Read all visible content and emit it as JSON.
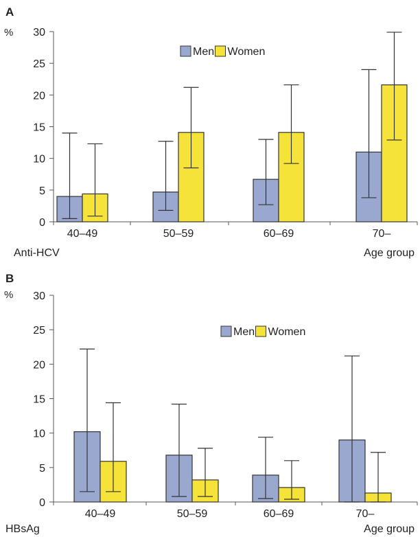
{
  "chart_data": [
    {
      "type": "bar",
      "panel": "A",
      "unit": "%",
      "ylabel": "%",
      "xlabel": "Age group",
      "marker_label": "Anti-HCV",
      "categories": [
        "40–49",
        "50–59",
        "60–69",
        "70–"
      ],
      "ylim": [
        0,
        30
      ],
      "yticks": [
        "0",
        "5",
        "10",
        "15",
        "20",
        "25",
        "30"
      ],
      "legend_position": "top-center",
      "series": [
        {
          "name": "Men",
          "color": "#9aa8cf",
          "values": [
            4.0,
            4.7,
            6.7,
            11.0
          ],
          "err_low": [
            0.5,
            1.8,
            2.7,
            3.8
          ],
          "err_high": [
            14.0,
            12.7,
            13.0,
            24.0
          ]
        },
        {
          "name": "Women",
          "color": "#f5e33a",
          "values": [
            4.4,
            14.1,
            14.1,
            21.6
          ],
          "err_low": [
            0.9,
            8.5,
            9.2,
            12.9
          ],
          "err_high": [
            12.3,
            21.2,
            21.6,
            29.9
          ]
        }
      ]
    },
    {
      "type": "bar",
      "panel": "B",
      "unit": "%",
      "ylabel": "%",
      "xlabel": "Age group",
      "marker_label": "HBsAg",
      "categories": [
        "40–49",
        "50–59",
        "60–69",
        "70–"
      ],
      "ylim": [
        0,
        30
      ],
      "yticks": [
        "0",
        "5",
        "10",
        "15",
        "20",
        "25",
        "30"
      ],
      "legend_position": "top-right",
      "series": [
        {
          "name": "Men",
          "color": "#9aa8cf",
          "values": [
            10.2,
            6.8,
            3.9,
            9.0
          ],
          "err_low": [
            1.5,
            0.8,
            0.5,
            0.0
          ],
          "err_high": [
            22.2,
            14.2,
            9.4,
            21.2
          ]
        },
        {
          "name": "Women",
          "color": "#f5e33a",
          "values": [
            5.9,
            3.2,
            2.1,
            1.3
          ],
          "err_low": [
            1.5,
            0.8,
            0.4,
            0.0
          ],
          "err_high": [
            14.4,
            7.8,
            6.0,
            7.2
          ]
        }
      ]
    }
  ]
}
